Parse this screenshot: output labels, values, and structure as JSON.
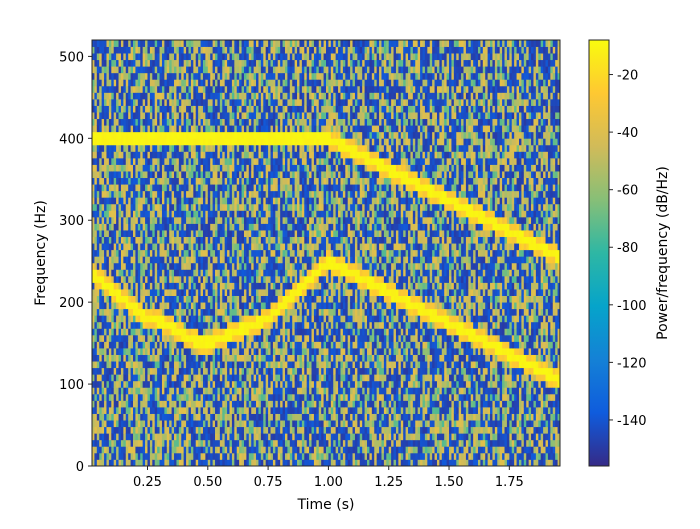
{
  "chart_data": {
    "type": "heatmap",
    "subtype": "spectrogram",
    "title": "",
    "xlabel": "Time (s)",
    "ylabel": "Frequency (Hz)",
    "xlim": [
      0.02,
      1.96
    ],
    "ylim": [
      0,
      520
    ],
    "xticks": [
      0.25,
      0.5,
      0.75,
      1.0,
      1.25,
      1.5,
      1.75
    ],
    "xtick_labels": [
      "0.25",
      "0.50",
      "0.75",
      "1.00",
      "1.25",
      "1.50",
      "1.75"
    ],
    "yticks": [
      0,
      100,
      200,
      300,
      400,
      500
    ],
    "ytick_labels": [
      "0",
      "100",
      "200",
      "300",
      "400",
      "500"
    ],
    "colorbar": {
      "label": "Power/frequency (dB/Hz)",
      "range": [
        -156,
        -8
      ],
      "ticks": [
        -20,
        -40,
        -60,
        -80,
        -100,
        -120,
        -140
      ],
      "tick_labels": [
        "-20",
        "-40",
        "-60",
        "-80",
        "-100",
        "-120",
        "-140"
      ],
      "colormap": "parula",
      "stops": [
        "#352a87",
        "#0f5cdd",
        "#1481d6",
        "#06a4ca",
        "#2eb7a4",
        "#87bf77",
        "#d1bb59",
        "#fec832",
        "#f9fb0e"
      ]
    },
    "time_range": [
      0.02,
      1.96
    ],
    "time_bins": 194,
    "freq_bin_hz": 8,
    "noise_floor_db": [
      -150,
      -40
    ],
    "tone_power_db": -12,
    "components": [
      {
        "description": "upper tone",
        "points": [
          [
            0.02,
            400
          ],
          [
            1.0,
            400
          ],
          [
            1.96,
            255
          ]
        ]
      },
      {
        "description": "lower tone",
        "points": [
          [
            0.02,
            235
          ],
          [
            0.25,
            180
          ],
          [
            0.5,
            150
          ],
          [
            0.75,
            180
          ],
          [
            1.0,
            250
          ],
          [
            1.96,
            105
          ]
        ]
      }
    ]
  }
}
